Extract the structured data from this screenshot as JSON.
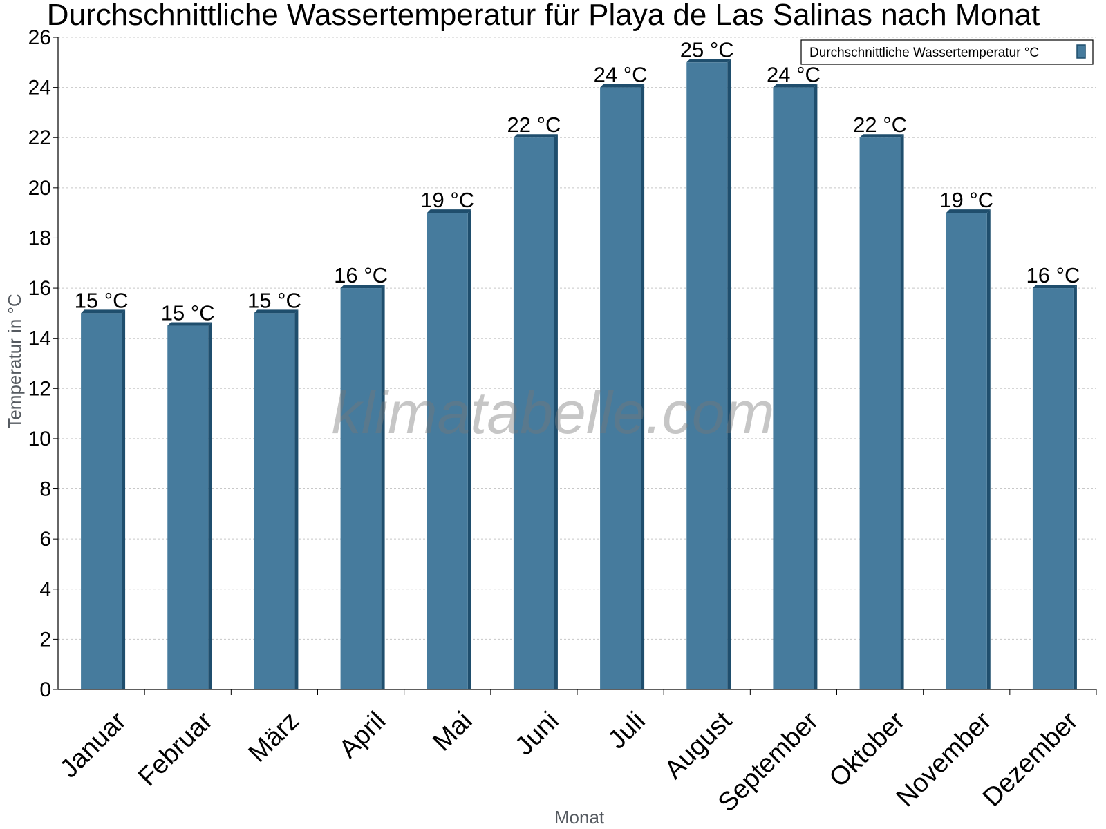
{
  "chart_data": {
    "type": "bar",
    "title": "Durchschnittliche Wassertemperatur für Playa de Las Salinas nach Monat",
    "xlabel": "Monat",
    "ylabel": "Temperatur in °C",
    "categories": [
      "Januar",
      "Februar",
      "März",
      "April",
      "Mai",
      "Juni",
      "Juli",
      "August",
      "September",
      "Oktober",
      "November",
      "Dezember"
    ],
    "series": [
      {
        "name": "Durchschnittliche Wassertemperatur °C",
        "values": [
          15,
          14.5,
          15,
          16,
          19,
          22,
          24,
          25,
          24,
          22,
          19,
          16
        ],
        "labels": [
          "15 °C",
          "15 °C",
          "15 °C",
          "16 °C",
          "19 °C",
          "22 °C",
          "24 °C",
          "25 °C",
          "24 °C",
          "22 °C",
          "19 °C",
          "16 °C"
        ]
      }
    ],
    "ylim": [
      0,
      26
    ],
    "yticks": [
      0,
      2,
      4,
      6,
      8,
      10,
      12,
      14,
      16,
      18,
      20,
      22,
      24,
      26
    ],
    "grid": true,
    "legend_position": "top-right",
    "colors": {
      "bar": "#467b9d",
      "bar_side": "#1f4e6d",
      "grid": "#c8c8c8"
    },
    "watermark": "klimatabelle.com"
  }
}
